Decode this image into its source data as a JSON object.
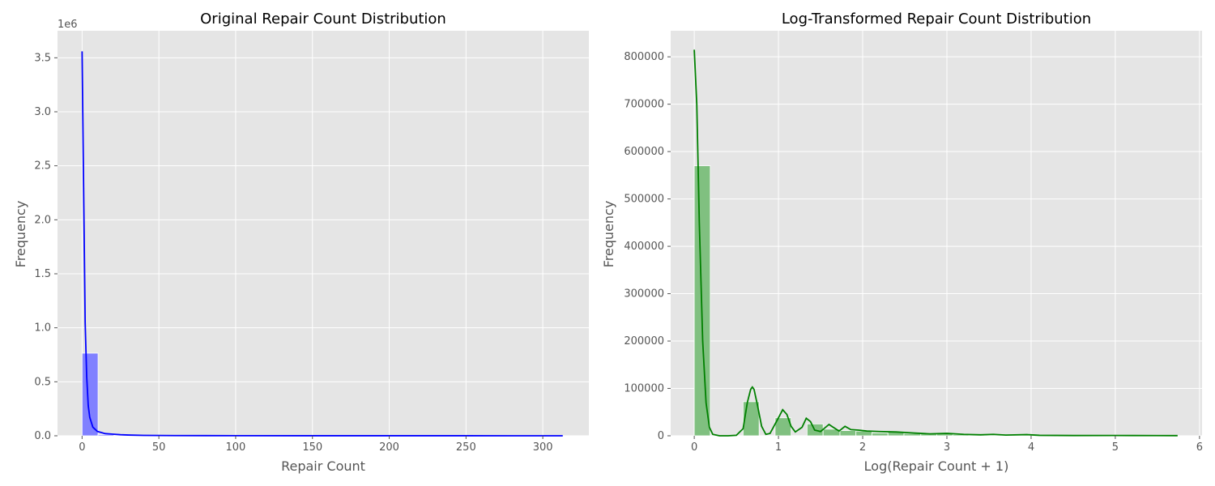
{
  "chart_data": [
    {
      "type": "bar",
      "title": "Original Repair Count Distribution",
      "xlabel": "Repair Count",
      "ylabel": "Frequency",
      "y_offset_label": "1e6",
      "y_scale": 1000000,
      "xlim": [
        -16,
        330
      ],
      "ylim": [
        0,
        3.75
      ],
      "xticks": [
        0,
        50,
        100,
        150,
        200,
        250,
        300
      ],
      "yticks": [
        0.0,
        0.5,
        1.0,
        1.5,
        2.0,
        2.5,
        3.0,
        3.5
      ],
      "ytick_labels": [
        "0.0",
        "0.5",
        "1.0",
        "1.5",
        "2.0",
        "2.5",
        "3.0",
        "3.5"
      ],
      "bar_color": "#8080ff",
      "kde_color": "#0000ff",
      "grid": true,
      "bins": [
        {
          "x0": 0,
          "x1": 10.4,
          "value": 0.765
        },
        {
          "x0": 10.4,
          "x1": 20.8,
          "value": 0.012
        },
        {
          "x0": 20.8,
          "x1": 31.2,
          "value": 0.004
        },
        {
          "x0": 31.2,
          "x1": 41.6,
          "value": 0.002
        },
        {
          "x0": 41.6,
          "x1": 52.0,
          "value": 0.001
        }
      ],
      "kde": {
        "x": [
          0,
          1,
          2,
          3,
          4,
          5,
          7,
          10,
          15,
          20,
          25,
          30,
          40,
          50,
          60,
          100,
          150,
          200,
          250,
          300,
          313
        ],
        "y": [
          3.56,
          2.3,
          1.05,
          0.55,
          0.28,
          0.17,
          0.08,
          0.04,
          0.02,
          0.015,
          0.01,
          0.007,
          0.004,
          0.003,
          0.002,
          0.001,
          0.0005,
          0.0004,
          0.0003,
          0.0002,
          0.0002
        ]
      }
    },
    {
      "type": "bar",
      "title": "Log-Transformed Repair Count Distribution",
      "xlabel": "Log(Repair Count + 1)",
      "ylabel": "Frequency",
      "xlim": [
        -0.28,
        6.03
      ],
      "ylim": [
        0,
        855000
      ],
      "xticks": [
        0,
        1,
        2,
        3,
        4,
        5,
        6
      ],
      "yticks": [
        0,
        100000,
        200000,
        300000,
        400000,
        500000,
        600000,
        700000,
        800000
      ],
      "bar_color": "#80c080",
      "kde_color": "#008000",
      "grid": true,
      "bins": [
        {
          "x0": 0.0,
          "x1": 0.19,
          "value": 570000
        },
        {
          "x0": 0.58,
          "x1": 0.77,
          "value": 72000
        },
        {
          "x0": 0.96,
          "x1": 1.15,
          "value": 38000
        },
        {
          "x0": 1.34,
          "x1": 1.53,
          "value": 25000
        },
        {
          "x0": 1.53,
          "x1": 1.73,
          "value": 14000
        },
        {
          "x0": 1.73,
          "x1": 1.92,
          "value": 11000
        },
        {
          "x0": 1.92,
          "x1": 2.11,
          "value": 10000
        },
        {
          "x0": 2.11,
          "x1": 2.3,
          "value": 6000
        },
        {
          "x0": 2.3,
          "x1": 2.49,
          "value": 8000
        },
        {
          "x0": 2.49,
          "x1": 2.69,
          "value": 5000
        },
        {
          "x0": 2.69,
          "x1": 2.88,
          "value": 4000
        },
        {
          "x0": 2.88,
          "x1": 3.07,
          "value": 4000
        },
        {
          "x0": 3.07,
          "x1": 3.26,
          "value": 2500
        },
        {
          "x0": 3.26,
          "x1": 3.45,
          "value": 1500
        },
        {
          "x0": 3.45,
          "x1": 3.65,
          "value": 1500
        },
        {
          "x0": 3.65,
          "x1": 3.84,
          "value": 800
        },
        {
          "x0": 3.84,
          "x1": 4.03,
          "value": 600
        },
        {
          "x0": 4.03,
          "x1": 4.22,
          "value": 300
        }
      ],
      "kde": {
        "x": [
          0,
          0.03,
          0.06,
          0.1,
          0.14,
          0.18,
          0.22,
          0.3,
          0.4,
          0.5,
          0.58,
          0.63,
          0.67,
          0.69,
          0.71,
          0.75,
          0.8,
          0.85,
          0.9,
          1.0,
          1.05,
          1.1,
          1.15,
          1.2,
          1.28,
          1.33,
          1.38,
          1.43,
          1.5,
          1.6,
          1.65,
          1.72,
          1.79,
          1.86,
          1.95,
          2.05,
          2.2,
          2.4,
          2.6,
          2.8,
          3.0,
          3.2,
          3.4,
          3.55,
          3.7,
          3.95,
          4.1,
          4.5,
          5.0,
          5.5,
          5.74
        ],
        "y": [
          815000,
          700000,
          450000,
          200000,
          70000,
          18000,
          3000,
          0,
          0,
          1000,
          15000,
          70000,
          98000,
          103000,
          98000,
          65000,
          20000,
          3000,
          5000,
          38000,
          55000,
          45000,
          20000,
          8000,
          18000,
          37000,
          30000,
          12000,
          9000,
          24000,
          18000,
          10000,
          20000,
          13000,
          12000,
          10000,
          9000,
          8000,
          6000,
          4000,
          5000,
          3000,
          2000,
          3000,
          1500,
          2500,
          1000,
          500,
          600,
          400,
          300
        ]
      }
    }
  ]
}
